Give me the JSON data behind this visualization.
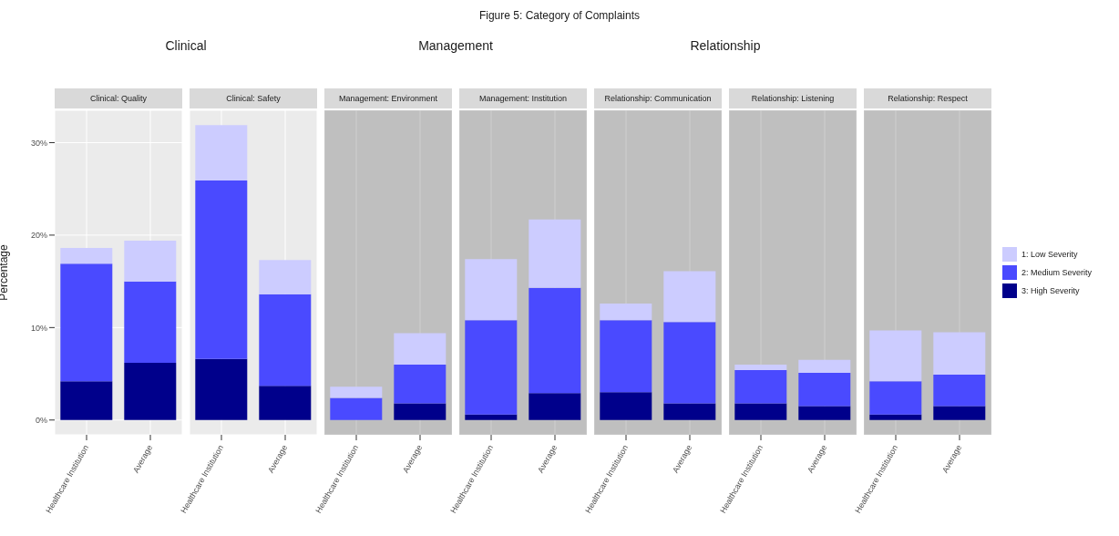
{
  "chart_data": [
    {
      "type": "bar",
      "title": "Clinical: Quality",
      "subtitle": "Clinical",
      "annotations": [
        "Figure 5: Category of Complaints"
      ],
      "ylabel": "Percentage",
      "categories": [
        "Healthcare Institution",
        "Average"
      ],
      "stacked": true,
      "series": [
        {
          "name": "3: High Severity",
          "color": "#00008b",
          "values": [
            4.2,
            6.2
          ]
        },
        {
          "name": "2: Medium Severity",
          "color": "#4a4aff",
          "values": [
            12.7,
            8.8
          ]
        },
        {
          "name": "1: Low Severity",
          "color": "#ccccff",
          "values": [
            1.7,
            4.4
          ]
        }
      ],
      "ylim": [
        -1.6,
        33.5
      ],
      "yticks": [
        {
          "value": 0,
          "label": "0%"
        },
        {
          "value": 10,
          "label": "10%"
        },
        {
          "value": 20,
          "label": "20%"
        },
        {
          "value": 30,
          "label": "30%"
        }
      ],
      "grid": true,
      "legend": "right"
    },
    {
      "type": "bar",
      "title": "Clinical: Safety",
      "categories": [
        "Healthcare Institution",
        "Average"
      ],
      "stacked": true,
      "series": [
        {
          "color": "#00008b",
          "values": [
            6.6,
            3.7
          ]
        },
        {
          "color": "#4a4aff",
          "values": [
            19.3,
            9.9
          ]
        },
        {
          "color": "#ccccff",
          "values": [
            6.0,
            3.7
          ]
        }
      ],
      "ylim": [
        -1.6,
        33.5
      ],
      "yticks": [
        {
          "value": 0,
          "label": null
        },
        {
          "value": 10,
          "label": null
        },
        {
          "value": 20,
          "label": null
        },
        {
          "value": 30,
          "label": null
        }
      ],
      "tick_labels": "x",
      "grid": true
    },
    {
      "type": "bar",
      "title": "Management: Environment",
      "subtitle": "Management",
      "categories": [
        "Healthcare Institution",
        "Average"
      ],
      "stacked": true,
      "series": [
        {
          "color": "#00008b",
          "values": [
            0,
            1.8
          ]
        },
        {
          "color": "#4a4aff",
          "values": [
            2.4,
            4.2
          ]
        },
        {
          "color": "#ccccff",
          "values": [
            1.2,
            3.4
          ]
        }
      ],
      "bands": [
        {
          "axis": "y",
          "from": -1.6,
          "to": 33.5,
          "color": "#cfcfcf"
        }
      ],
      "ylim": [
        -1.6,
        33.5
      ],
      "yticks": [
        {
          "value": 0,
          "label": null
        },
        {
          "value": 10,
          "label": null
        },
        {
          "value": 20,
          "label": null
        },
        {
          "value": 30,
          "label": null
        }
      ],
      "tick_labels": "x",
      "grid": true
    },
    {
      "type": "bar",
      "title": "Management: Institution",
      "categories": [
        "Healthcare Institution",
        "Average"
      ],
      "stacked": true,
      "series": [
        {
          "color": "#00008b",
          "values": [
            0.6,
            2.9
          ]
        },
        {
          "color": "#4a4aff",
          "values": [
            10.2,
            11.4
          ]
        },
        {
          "color": "#ccccff",
          "values": [
            6.6,
            7.4
          ]
        }
      ],
      "bands": [
        {
          "axis": "y",
          "from": -1.6,
          "to": 33.5,
          "color": "#cfcfcf"
        }
      ],
      "ylim": [
        -1.6,
        33.5
      ],
      "yticks": [
        {
          "value": 0,
          "label": null
        },
        {
          "value": 10,
          "label": null
        },
        {
          "value": 20,
          "label": null
        },
        {
          "value": 30,
          "label": null
        }
      ],
      "tick_labels": "x",
      "grid": true
    },
    {
      "type": "bar",
      "title": "Relationship: Communication",
      "subtitle": "Relationship",
      "categories": [
        "Healthcare Institution",
        "Average"
      ],
      "stacked": true,
      "series": [
        {
          "color": "#00008b",
          "values": [
            3.0,
            1.8
          ]
        },
        {
          "color": "#4a4aff",
          "values": [
            7.8,
            8.8
          ]
        },
        {
          "color": "#ccccff",
          "values": [
            1.8,
            5.5
          ]
        }
      ],
      "bands": [
        {
          "axis": "y",
          "from": -1.6,
          "to": 33.5,
          "color": "#cfcfcf"
        }
      ],
      "ylim": [
        -1.6,
        33.5
      ],
      "yticks": [
        {
          "value": 0,
          "label": null
        },
        {
          "value": 10,
          "label": null
        },
        {
          "value": 20,
          "label": null
        },
        {
          "value": 30,
          "label": null
        }
      ],
      "tick_labels": "x",
      "grid": true
    },
    {
      "type": "bar",
      "title": "Relationship: Listening",
      "categories": [
        "Healthcare Institution",
        "Average"
      ],
      "stacked": true,
      "series": [
        {
          "color": "#00008b",
          "values": [
            1.8,
            1.5
          ]
        },
        {
          "color": "#4a4aff",
          "values": [
            3.6,
            3.6
          ]
        },
        {
          "color": "#ccccff",
          "values": [
            0.6,
            1.4
          ]
        }
      ],
      "bands": [
        {
          "axis": "y",
          "from": -1.6,
          "to": 33.5,
          "color": "#cfcfcf"
        }
      ],
      "ylim": [
        -1.6,
        33.5
      ],
      "yticks": [
        {
          "value": 0,
          "label": null
        },
        {
          "value": 10,
          "label": null
        },
        {
          "value": 20,
          "label": null
        },
        {
          "value": 30,
          "label": null
        }
      ],
      "tick_labels": "x",
      "grid": true
    },
    {
      "type": "bar",
      "title": "Relationship: Respect",
      "categories": [
        "Healthcare Institution",
        "Average"
      ],
      "stacked": true,
      "series": [
        {
          "color": "#00008b",
          "values": [
            0.6,
            1.5
          ]
        },
        {
          "color": "#4a4aff",
          "values": [
            3.6,
            3.4
          ]
        },
        {
          "color": "#ccccff",
          "values": [
            5.5,
            4.6
          ]
        }
      ],
      "bands": [
        {
          "axis": "y",
          "from": -1.6,
          "to": 33.5,
          "color": "#cfcfcf"
        }
      ],
      "ylim": [
        -1.6,
        33.5
      ],
      "yticks": [
        {
          "value": 0,
          "label": null
        },
        {
          "value": 10,
          "label": null
        },
        {
          "value": 20,
          "label": null
        },
        {
          "value": 30,
          "label": null
        }
      ],
      "tick_labels": "x",
      "grid": true
    }
  ]
}
